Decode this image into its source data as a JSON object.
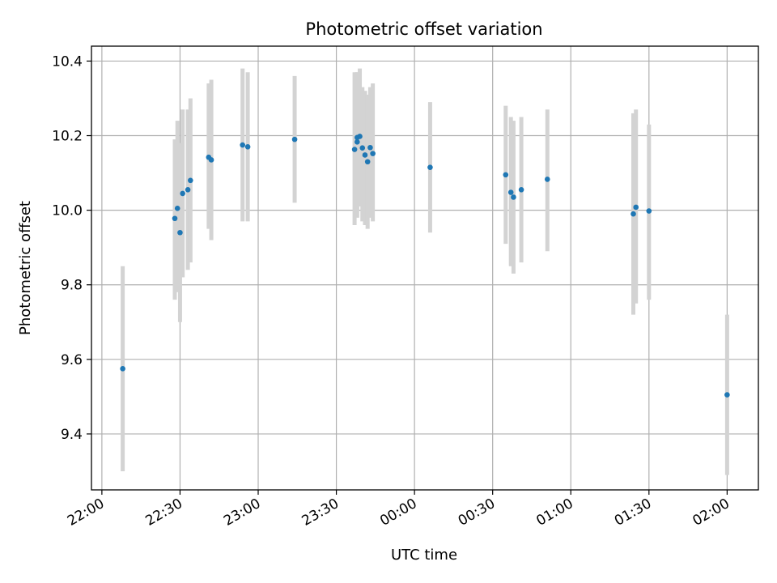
{
  "chart_data": {
    "type": "scatter",
    "title": "Photometric offset variation",
    "xlabel": "UTC time",
    "ylabel": "Photometric offset",
    "x_ticks": [
      "22:00",
      "22:30",
      "23:00",
      "23:30",
      "00:00",
      "00:30",
      "01:00",
      "01:30",
      "02:00"
    ],
    "x_tick_minutes": [
      0,
      30,
      60,
      90,
      120,
      150,
      180,
      210,
      240
    ],
    "y_ticks": [
      "9.4",
      "9.6",
      "9.8",
      "10.0",
      "10.2",
      "10.4"
    ],
    "y_tick_values": [
      9.4,
      9.6,
      9.8,
      10.0,
      10.2,
      10.4
    ],
    "xlim_minutes": [
      -4,
      252
    ],
    "ylim": [
      9.25,
      10.44
    ],
    "grid": true,
    "marker_color": "#1f77b4",
    "errorbar_color": "#d3d3d3",
    "points": [
      {
        "t": "22:08",
        "y": 9.575,
        "lo": 9.3,
        "hi": 9.85
      },
      {
        "t": "22:28",
        "y": 9.978,
        "lo": 9.76,
        "hi": 10.19
      },
      {
        "t": "22:29",
        "y": 10.005,
        "lo": 9.78,
        "hi": 10.24
      },
      {
        "t": "22:30",
        "y": 9.94,
        "lo": 9.7,
        "hi": 10.18
      },
      {
        "t": "22:31",
        "y": 10.045,
        "lo": 9.82,
        "hi": 10.27
      },
      {
        "t": "22:33",
        "y": 10.055,
        "lo": 9.84,
        "hi": 10.27
      },
      {
        "t": "22:34",
        "y": 10.08,
        "lo": 9.86,
        "hi": 10.3
      },
      {
        "t": "22:41",
        "y": 10.142,
        "lo": 9.95,
        "hi": 10.34
      },
      {
        "t": "22:42",
        "y": 10.135,
        "lo": 9.92,
        "hi": 10.35
      },
      {
        "t": "22:54",
        "y": 10.175,
        "lo": 9.97,
        "hi": 10.38
      },
      {
        "t": "22:56",
        "y": 10.17,
        "lo": 9.97,
        "hi": 10.37
      },
      {
        "t": "23:14",
        "y": 10.19,
        "lo": 10.02,
        "hi": 10.36
      },
      {
        "t": "23:37",
        "y": 10.163,
        "lo": 9.96,
        "hi": 10.37
      },
      {
        "t": "23:38",
        "y": 10.183,
        "lo": 9.98,
        "hi": 10.37
      },
      {
        "t": "23:38",
        "y": 10.195,
        "lo": 10.0,
        "hi": 10.37
      },
      {
        "t": "23:39",
        "y": 10.198,
        "lo": 10.01,
        "hi": 10.38
      },
      {
        "t": "23:40",
        "y": 10.167,
        "lo": 9.97,
        "hi": 10.33
      },
      {
        "t": "23:41",
        "y": 10.148,
        "lo": 9.96,
        "hi": 10.32
      },
      {
        "t": "23:42",
        "y": 10.13,
        "lo": 9.95,
        "hi": 10.31
      },
      {
        "t": "23:43",
        "y": 10.168,
        "lo": 9.98,
        "hi": 10.33
      },
      {
        "t": "23:44",
        "y": 10.152,
        "lo": 9.97,
        "hi": 10.34
      },
      {
        "t": "00:06",
        "y": 10.115,
        "lo": 9.94,
        "hi": 10.29
      },
      {
        "t": "00:35",
        "y": 10.095,
        "lo": 9.91,
        "hi": 10.28
      },
      {
        "t": "00:37",
        "y": 10.048,
        "lo": 9.85,
        "hi": 10.25
      },
      {
        "t": "00:38",
        "y": 10.035,
        "lo": 9.83,
        "hi": 10.24
      },
      {
        "t": "00:41",
        "y": 10.055,
        "lo": 9.86,
        "hi": 10.25
      },
      {
        "t": "00:51",
        "y": 10.083,
        "lo": 9.89,
        "hi": 10.27
      },
      {
        "t": "01:24",
        "y": 9.99,
        "lo": 9.72,
        "hi": 10.26
      },
      {
        "t": "01:25",
        "y": 10.008,
        "lo": 9.75,
        "hi": 10.27
      },
      {
        "t": "01:30",
        "y": 9.998,
        "lo": 9.76,
        "hi": 10.23
      },
      {
        "t": "02:00",
        "y": 9.505,
        "lo": 9.29,
        "hi": 9.72
      }
    ]
  }
}
